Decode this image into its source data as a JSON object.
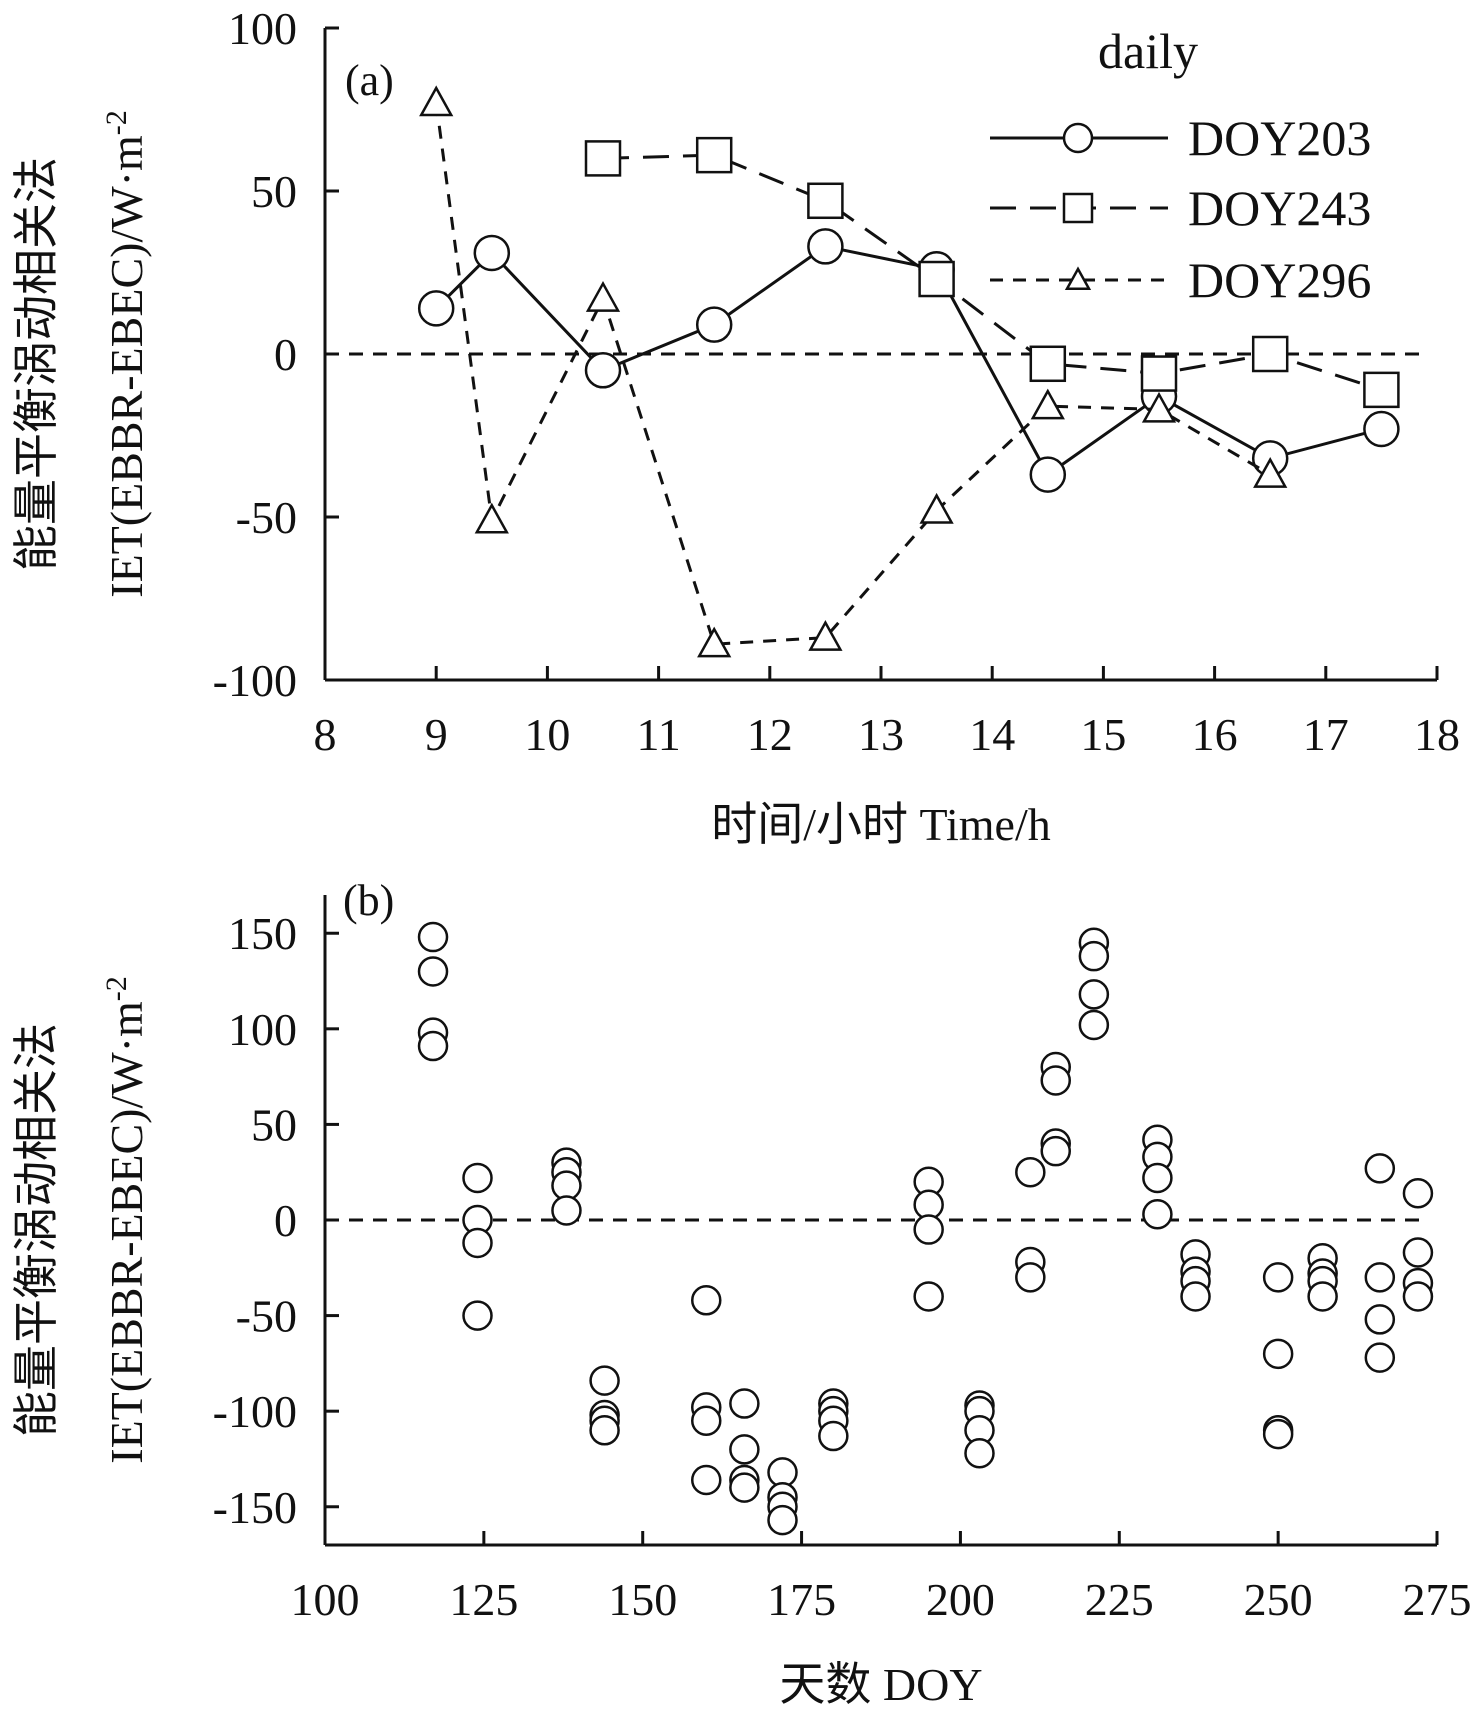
{
  "chart_data": [
    {
      "type": "line",
      "panel_label": "(a)",
      "xlabel": "时间/小时 Time/h",
      "ylabel_line1": "能量平衡涡动相关法",
      "ylabel_line2": "IET(EBBR-EBEC)/W·m",
      "ylabel_sup": "-2",
      "xlim": [
        8,
        18
      ],
      "ylim": [
        -100,
        100
      ],
      "xticks": [
        8,
        9,
        10,
        11,
        12,
        13,
        14,
        15,
        16,
        17,
        18
      ],
      "yticks": [
        100,
        50,
        0,
        -50,
        -100
      ],
      "zero_line": true,
      "legend_title": "daily",
      "legend_placement": "top-right",
      "series": [
        {
          "name": "DOY203",
          "marker": "circle",
          "line": "solid",
          "x": [
            9,
            9.5,
            10.5,
            11.5,
            12.5,
            13.5,
            14.5,
            15.5,
            16.5,
            17.5
          ],
          "y": [
            14,
            31,
            -5,
            9,
            33,
            26,
            -37,
            -13,
            -32,
            -23
          ]
        },
        {
          "name": "DOY243",
          "marker": "square",
          "line": "dash",
          "x": [
            10.5,
            11.5,
            12.5,
            13.5,
            14.5,
            15.5,
            16.5,
            17.5
          ],
          "y": [
            60,
            61,
            47,
            23,
            -3,
            -6,
            0,
            -11
          ]
        },
        {
          "name": "DOY296",
          "marker": "triangle",
          "line": "shortdash",
          "x": [
            9,
            9.5,
            10.5,
            11.5,
            12.5,
            13.5,
            14.5,
            15.5,
            16.5
          ],
          "y": [
            77,
            -51,
            17,
            -89,
            -87,
            -48,
            -16,
            -17,
            -37
          ]
        }
      ]
    },
    {
      "type": "scatter",
      "panel_label": "(b)",
      "xlabel": "天数 DOY",
      "ylabel_line1": "能量平衡涡动相关法",
      "ylabel_line2": "IET(EBBR-EBEC)/W·m",
      "ylabel_sup": "-2",
      "xlim": [
        100,
        275
      ],
      "ylim": [
        -170,
        170
      ],
      "xticks": [
        100,
        125,
        150,
        175,
        200,
        225,
        250,
        275
      ],
      "yticks": [
        150,
        100,
        50,
        0,
        -50,
        -100,
        -150
      ],
      "zero_line": true,
      "series": [
        {
          "name": "IET",
          "marker": "circle",
          "points": [
            [
              117,
              148
            ],
            [
              117,
              130
            ],
            [
              117,
              98
            ],
            [
              117,
              91
            ],
            [
              124,
              22
            ],
            [
              124,
              0
            ],
            [
              124,
              -12
            ],
            [
              124,
              -50
            ],
            [
              138,
              30
            ],
            [
              138,
              25
            ],
            [
              138,
              18
            ],
            [
              138,
              5
            ],
            [
              144,
              -84
            ],
            [
              144,
              -102
            ],
            [
              144,
              -105
            ],
            [
              144,
              -110
            ],
            [
              160,
              -42
            ],
            [
              160,
              -98
            ],
            [
              160,
              -105
            ],
            [
              160,
              -136
            ],
            [
              166,
              -96
            ],
            [
              166,
              -120
            ],
            [
              166,
              -136
            ],
            [
              166,
              -140
            ],
            [
              172,
              -132
            ],
            [
              172,
              -145
            ],
            [
              172,
              -150
            ],
            [
              172,
              -157
            ],
            [
              180,
              -96
            ],
            [
              180,
              -100
            ],
            [
              180,
              -105
            ],
            [
              180,
              -113
            ],
            [
              195,
              20
            ],
            [
              195,
              8
            ],
            [
              195,
              -5
            ],
            [
              195,
              -40
            ],
            [
              203,
              -97
            ],
            [
              203,
              -100
            ],
            [
              203,
              -110
            ],
            [
              203,
              -122
            ],
            [
              211,
              25
            ],
            [
              211,
              -22
            ],
            [
              211,
              -30
            ],
            [
              215,
              80
            ],
            [
              215,
              73
            ],
            [
              215,
              40
            ],
            [
              215,
              36
            ],
            [
              221,
              145
            ],
            [
              221,
              138
            ],
            [
              221,
              118
            ],
            [
              221,
              102
            ],
            [
              231,
              42
            ],
            [
              231,
              33
            ],
            [
              231,
              22
            ],
            [
              231,
              3
            ],
            [
              237,
              -18
            ],
            [
              237,
              -27
            ],
            [
              237,
              -32
            ],
            [
              237,
              -40
            ],
            [
              250,
              -30
            ],
            [
              250,
              -70
            ],
            [
              250,
              -110
            ],
            [
              250,
              -112
            ],
            [
              257,
              -20
            ],
            [
              257,
              -28
            ],
            [
              257,
              -32
            ],
            [
              257,
              -40
            ],
            [
              266,
              27
            ],
            [
              266,
              -30
            ],
            [
              266,
              -52
            ],
            [
              266,
              -72
            ],
            [
              272,
              14
            ],
            [
              272,
              -17
            ],
            [
              272,
              -33
            ],
            [
              272,
              -40
            ]
          ]
        }
      ]
    }
  ]
}
